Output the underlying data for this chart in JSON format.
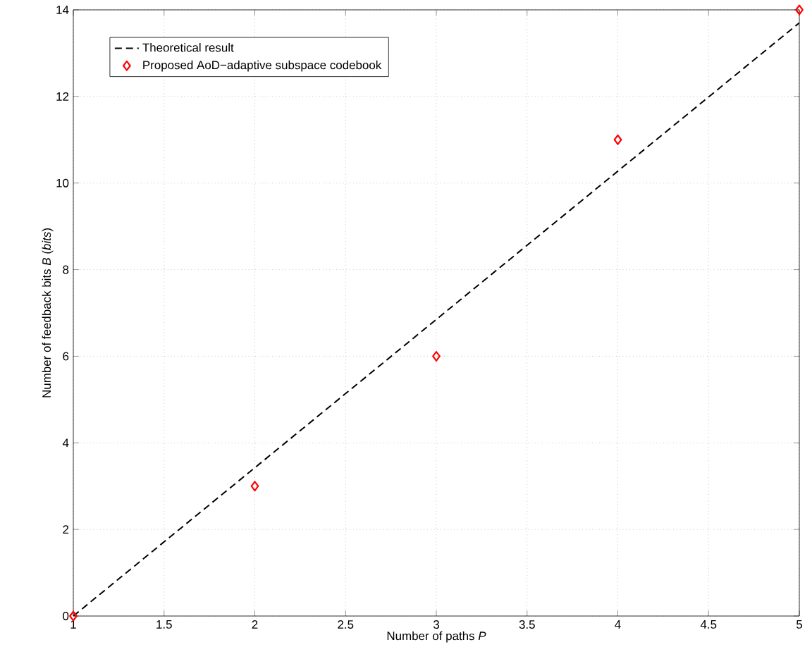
{
  "chart_data": {
    "type": "line",
    "xlabel": "Number of paths *P*",
    "ylabel": "Number of feedback bits *B* (*bits*)",
    "xlim": [
      1,
      5
    ],
    "ylim": [
      0,
      14
    ],
    "xticks": [
      1,
      1.5,
      2,
      2.5,
      3,
      3.5,
      4,
      4.5,
      5
    ],
    "yticks": [
      0,
      2,
      4,
      6,
      8,
      10,
      12,
      14
    ],
    "grid": true,
    "legend": "top left",
    "series": [
      {
        "name": "Theoretical result",
        "color": "#000000",
        "line_style": "dashed",
        "marker": "none",
        "x": [
          1,
          5
        ],
        "values": [
          0,
          13.7
        ]
      },
      {
        "name": "Proposed AoD−adaptive subspace codebook",
        "type": "scatter",
        "color": "#ff0000",
        "marker": "diamond",
        "x": [
          1,
          2,
          3,
          4,
          5
        ],
        "values": [
          0,
          3,
          6,
          11,
          14
        ]
      }
    ]
  }
}
